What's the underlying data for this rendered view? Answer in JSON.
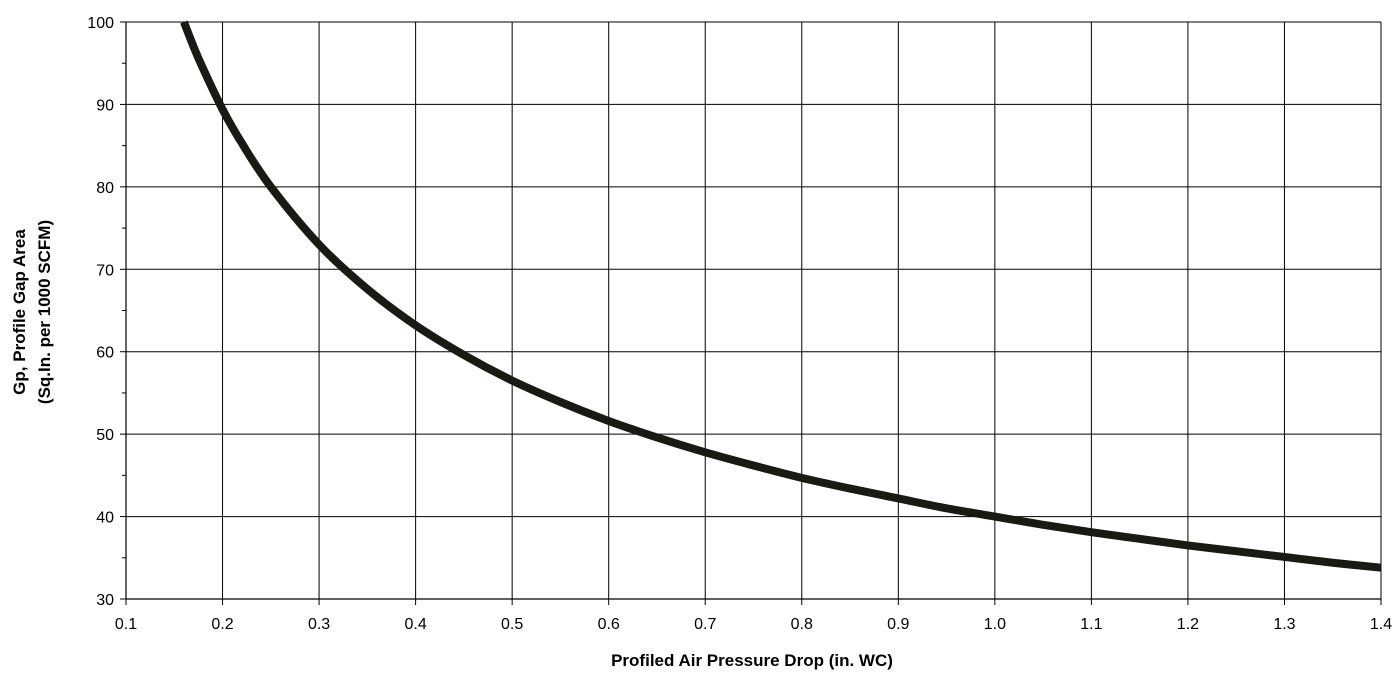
{
  "chart_data": {
    "type": "line",
    "title": "",
    "xlabel": "Profiled Air Pressure Drop (in. WC)",
    "ylabel_line1": "Gp, Profile Gap Area",
    "ylabel_line2": "(Sq.In. per 1000 SCFM)",
    "xlim": [
      0.1,
      1.4
    ],
    "ylim": [
      30,
      100
    ],
    "xticks": [
      0.1,
      0.2,
      0.3,
      0.4,
      0.5,
      0.6,
      0.7,
      0.8,
      0.9,
      1.0,
      1.1,
      1.2,
      1.3,
      1.4
    ],
    "xtick_labels": [
      "0.1",
      "0.2",
      "0.3",
      "0.4",
      "0.5",
      "0.6",
      "0.7",
      "0.8",
      "0.9",
      "1.0",
      "1.1",
      "1.2",
      "1.3",
      "1.4"
    ],
    "yticks": [
      30,
      40,
      50,
      60,
      70,
      80,
      90,
      100
    ],
    "ytick_labels": [
      "30",
      "40",
      "50",
      "60",
      "70",
      "80",
      "90",
      "100"
    ],
    "y_minor_ticks": [
      35,
      45,
      55,
      65,
      75,
      85,
      95
    ],
    "grid": true,
    "series": [
      {
        "color": "#1a1a14",
        "x": [
          0.16,
          0.17,
          0.18,
          0.2,
          0.22,
          0.25,
          0.3,
          0.35,
          0.4,
          0.45,
          0.5,
          0.55,
          0.6,
          0.65,
          0.7,
          0.75,
          0.8,
          0.85,
          0.9,
          0.95,
          1.0,
          1.05,
          1.1,
          1.15,
          1.2,
          1.25,
          1.3,
          1.35,
          1.4
        ],
        "y": [
          100,
          97,
          94.3,
          89.4,
          85.3,
          80.0,
          73.0,
          67.6,
          63.2,
          59.6,
          56.5,
          53.9,
          51.6,
          49.6,
          47.8,
          46.2,
          44.7,
          43.4,
          42.2,
          41.0,
          40.0,
          39.0,
          38.1,
          37.3,
          36.5,
          35.8,
          35.1,
          34.4,
          33.8
        ]
      }
    ]
  }
}
